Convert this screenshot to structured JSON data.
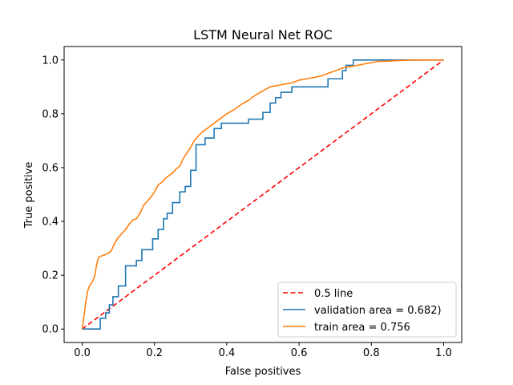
{
  "chart_data": {
    "type": "line",
    "title": "LSTM Neural Net ROC",
    "xlabel": "False positives",
    "ylabel": "True positive",
    "xlim": [
      -0.05,
      1.05
    ],
    "ylim": [
      -0.05,
      1.05
    ],
    "xticks": [
      "0.0",
      "0.2",
      "0.4",
      "0.6",
      "0.8",
      "1.0"
    ],
    "yticks": [
      "0.0",
      "0.2",
      "0.4",
      "0.6",
      "0.8",
      "1.0"
    ],
    "grid": false,
    "legend_position": "lower-right",
    "series": [
      {
        "name": "0.5 line",
        "color": "#ff0000",
        "style": "dashed",
        "x": [
          0,
          1
        ],
        "y": [
          0,
          1
        ]
      },
      {
        "name": "validation area = 0.682)",
        "color": "#1f77b4",
        "style": "step",
        "x": [
          0,
          0.05,
          0.05,
          0.065,
          0.065,
          0.075,
          0.075,
          0.085,
          0.085,
          0.1,
          0.1,
          0.12,
          0.12,
          0.15,
          0.15,
          0.165,
          0.165,
          0.195,
          0.195,
          0.21,
          0.21,
          0.225,
          0.225,
          0.235,
          0.235,
          0.25,
          0.25,
          0.27,
          0.27,
          0.285,
          0.285,
          0.3,
          0.3,
          0.315,
          0.315,
          0.34,
          0.34,
          0.365,
          0.365,
          0.385,
          0.385,
          0.46,
          0.46,
          0.5,
          0.5,
          0.52,
          0.52,
          0.535,
          0.535,
          0.55,
          0.55,
          0.58,
          0.58,
          0.68,
          0.68,
          0.72,
          0.72,
          0.73,
          0.73,
          0.75,
          0.75,
          0.84,
          0.84,
          0.855,
          1.0
        ],
        "y": [
          0,
          0,
          0.04,
          0.04,
          0.06,
          0.06,
          0.09,
          0.09,
          0.12,
          0.12,
          0.16,
          0.16,
          0.235,
          0.235,
          0.255,
          0.255,
          0.295,
          0.295,
          0.335,
          0.335,
          0.37,
          0.37,
          0.41,
          0.41,
          0.43,
          0.43,
          0.47,
          0.47,
          0.51,
          0.51,
          0.53,
          0.53,
          0.59,
          0.59,
          0.685,
          0.685,
          0.71,
          0.71,
          0.745,
          0.745,
          0.765,
          0.765,
          0.78,
          0.78,
          0.805,
          0.805,
          0.84,
          0.84,
          0.86,
          0.86,
          0.88,
          0.88,
          0.9,
          0.9,
          0.93,
          0.93,
          0.96,
          0.96,
          0.98,
          0.98,
          1.0,
          1.0,
          1.0,
          1.0,
          1.0
        ]
      },
      {
        "name": "train area = 0.756",
        "color": "#ff7f0e",
        "style": "solid",
        "x": [
          0,
          0.005,
          0.01,
          0.015,
          0.02,
          0.03,
          0.035,
          0.04,
          0.045,
          0.05,
          0.06,
          0.07,
          0.08,
          0.09,
          0.1,
          0.11,
          0.12,
          0.13,
          0.14,
          0.15,
          0.16,
          0.17,
          0.18,
          0.19,
          0.2,
          0.21,
          0.22,
          0.23,
          0.24,
          0.25,
          0.26,
          0.27,
          0.28,
          0.29,
          0.3,
          0.31,
          0.32,
          0.33,
          0.34,
          0.35,
          0.36,
          0.38,
          0.4,
          0.42,
          0.44,
          0.46,
          0.48,
          0.5,
          0.52,
          0.54,
          0.56,
          0.58,
          0.6,
          0.62,
          0.64,
          0.66,
          0.68,
          0.7,
          0.72,
          0.74,
          0.76,
          0.78,
          0.8,
          0.82,
          0.84,
          0.86,
          0.88,
          0.9,
          0.95,
          1.0
        ],
        "y": [
          0,
          0.05,
          0.1,
          0.14,
          0.16,
          0.18,
          0.2,
          0.24,
          0.265,
          0.27,
          0.275,
          0.28,
          0.29,
          0.32,
          0.34,
          0.355,
          0.37,
          0.39,
          0.405,
          0.41,
          0.43,
          0.46,
          0.475,
          0.49,
          0.51,
          0.535,
          0.545,
          0.56,
          0.57,
          0.58,
          0.595,
          0.605,
          0.635,
          0.655,
          0.675,
          0.7,
          0.715,
          0.73,
          0.74,
          0.75,
          0.76,
          0.78,
          0.8,
          0.815,
          0.835,
          0.85,
          0.87,
          0.885,
          0.9,
          0.905,
          0.91,
          0.915,
          0.925,
          0.93,
          0.935,
          0.94,
          0.95,
          0.96,
          0.97,
          0.975,
          0.98,
          0.985,
          0.99,
          0.995,
          0.995,
          0.997,
          0.998,
          0.999,
          1.0,
          1.0
        ]
      }
    ]
  }
}
